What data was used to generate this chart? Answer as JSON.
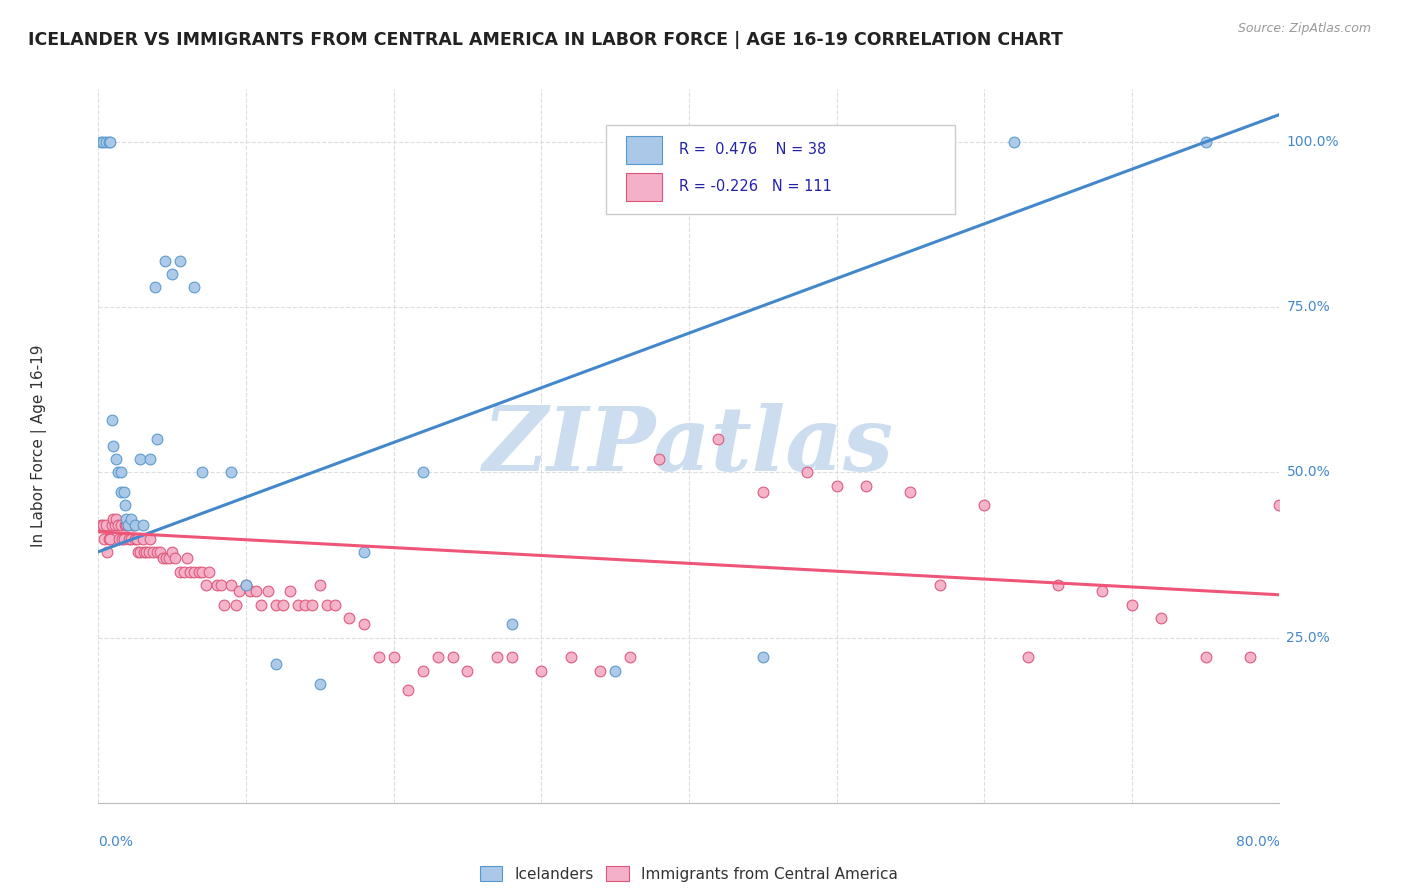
{
  "title": "ICELANDER VS IMMIGRANTS FROM CENTRAL AMERICA IN LABOR FORCE | AGE 16-19 CORRELATION CHART",
  "source": "Source: ZipAtlas.com",
  "ylabel": "In Labor Force | Age 16-19",
  "xmin": 0.0,
  "xmax": 0.8,
  "ymin": 0.0,
  "ymax": 1.08,
  "icelander_color": "#aac8e8",
  "immigrant_color": "#f4b0c8",
  "icelander_edge_color": "#5599cc",
  "immigrant_edge_color": "#dd5577",
  "icelander_line_color": "#4488cc",
  "immigrant_line_color": "#ee5577",
  "watermark_text": "ZIPatlas",
  "watermark_color": "#ccddf0",
  "source_color": "#999999",
  "title_color": "#222222",
  "ylabel_color": "#333333",
  "axis_label_color": "#4488cc",
  "legend_text_color": "#2222aa",
  "grid_color": "#dddddd",
  "ytick_vals": [
    0.25,
    0.5,
    0.75,
    1.0
  ],
  "ytick_labels": [
    "25.0%",
    "50.0%",
    "75.0%",
    "100.0%"
  ],
  "icelander_x": [
    0.002,
    0.003,
    0.005,
    0.007,
    0.008,
    0.009,
    0.01,
    0.012,
    0.013,
    0.015,
    0.015,
    0.017,
    0.018,
    0.019,
    0.02,
    0.022,
    0.025,
    0.028,
    0.03,
    0.035,
    0.038,
    0.04,
    0.045,
    0.05,
    0.055,
    0.065,
    0.07,
    0.09,
    0.1,
    0.12,
    0.15,
    0.18,
    0.22,
    0.28,
    0.35,
    0.45,
    0.62,
    0.75
  ],
  "icelander_y": [
    1.0,
    1.0,
    1.0,
    1.0,
    1.0,
    0.58,
    0.54,
    0.52,
    0.5,
    0.5,
    0.47,
    0.47,
    0.45,
    0.43,
    0.42,
    0.43,
    0.42,
    0.52,
    0.42,
    0.52,
    0.78,
    0.55,
    0.82,
    0.8,
    0.82,
    0.78,
    0.5,
    0.5,
    0.33,
    0.21,
    0.18,
    0.38,
    0.5,
    0.27,
    0.2,
    0.22,
    1.0,
    1.0
  ],
  "immigrant_x": [
    0.002,
    0.003,
    0.004,
    0.005,
    0.006,
    0.007,
    0.008,
    0.009,
    0.01,
    0.011,
    0.012,
    0.013,
    0.014,
    0.015,
    0.016,
    0.017,
    0.018,
    0.019,
    0.02,
    0.021,
    0.022,
    0.023,
    0.024,
    0.025,
    0.026,
    0.027,
    0.028,
    0.03,
    0.031,
    0.032,
    0.034,
    0.035,
    0.037,
    0.04,
    0.042,
    0.044,
    0.046,
    0.048,
    0.05,
    0.052,
    0.055,
    0.058,
    0.06,
    0.062,
    0.065,
    0.068,
    0.07,
    0.073,
    0.075,
    0.08,
    0.083,
    0.085,
    0.09,
    0.093,
    0.095,
    0.1,
    0.103,
    0.107,
    0.11,
    0.115,
    0.12,
    0.125,
    0.13,
    0.135,
    0.14,
    0.145,
    0.15,
    0.155,
    0.16,
    0.17,
    0.18,
    0.19,
    0.2,
    0.21,
    0.22,
    0.23,
    0.24,
    0.25,
    0.27,
    0.28,
    0.3,
    0.32,
    0.34,
    0.36,
    0.38,
    0.42,
    0.45,
    0.48,
    0.5,
    0.52,
    0.55,
    0.57,
    0.6,
    0.63,
    0.65,
    0.68,
    0.7,
    0.72,
    0.75,
    0.78,
    0.8
  ],
  "immigrant_y": [
    0.42,
    0.42,
    0.4,
    0.42,
    0.38,
    0.4,
    0.4,
    0.42,
    0.43,
    0.42,
    0.43,
    0.42,
    0.4,
    0.42,
    0.4,
    0.4,
    0.42,
    0.42,
    0.42,
    0.4,
    0.4,
    0.42,
    0.42,
    0.4,
    0.4,
    0.38,
    0.38,
    0.4,
    0.38,
    0.38,
    0.38,
    0.4,
    0.38,
    0.38,
    0.38,
    0.37,
    0.37,
    0.37,
    0.38,
    0.37,
    0.35,
    0.35,
    0.37,
    0.35,
    0.35,
    0.35,
    0.35,
    0.33,
    0.35,
    0.33,
    0.33,
    0.3,
    0.33,
    0.3,
    0.32,
    0.33,
    0.32,
    0.32,
    0.3,
    0.32,
    0.3,
    0.3,
    0.32,
    0.3,
    0.3,
    0.3,
    0.33,
    0.3,
    0.3,
    0.28,
    0.27,
    0.22,
    0.22,
    0.17,
    0.2,
    0.22,
    0.22,
    0.2,
    0.22,
    0.22,
    0.2,
    0.22,
    0.2,
    0.22,
    0.52,
    0.55,
    0.47,
    0.5,
    0.48,
    0.48,
    0.47,
    0.33,
    0.45,
    0.22,
    0.33,
    0.32,
    0.3,
    0.28,
    0.22,
    0.22,
    0.45
  ]
}
